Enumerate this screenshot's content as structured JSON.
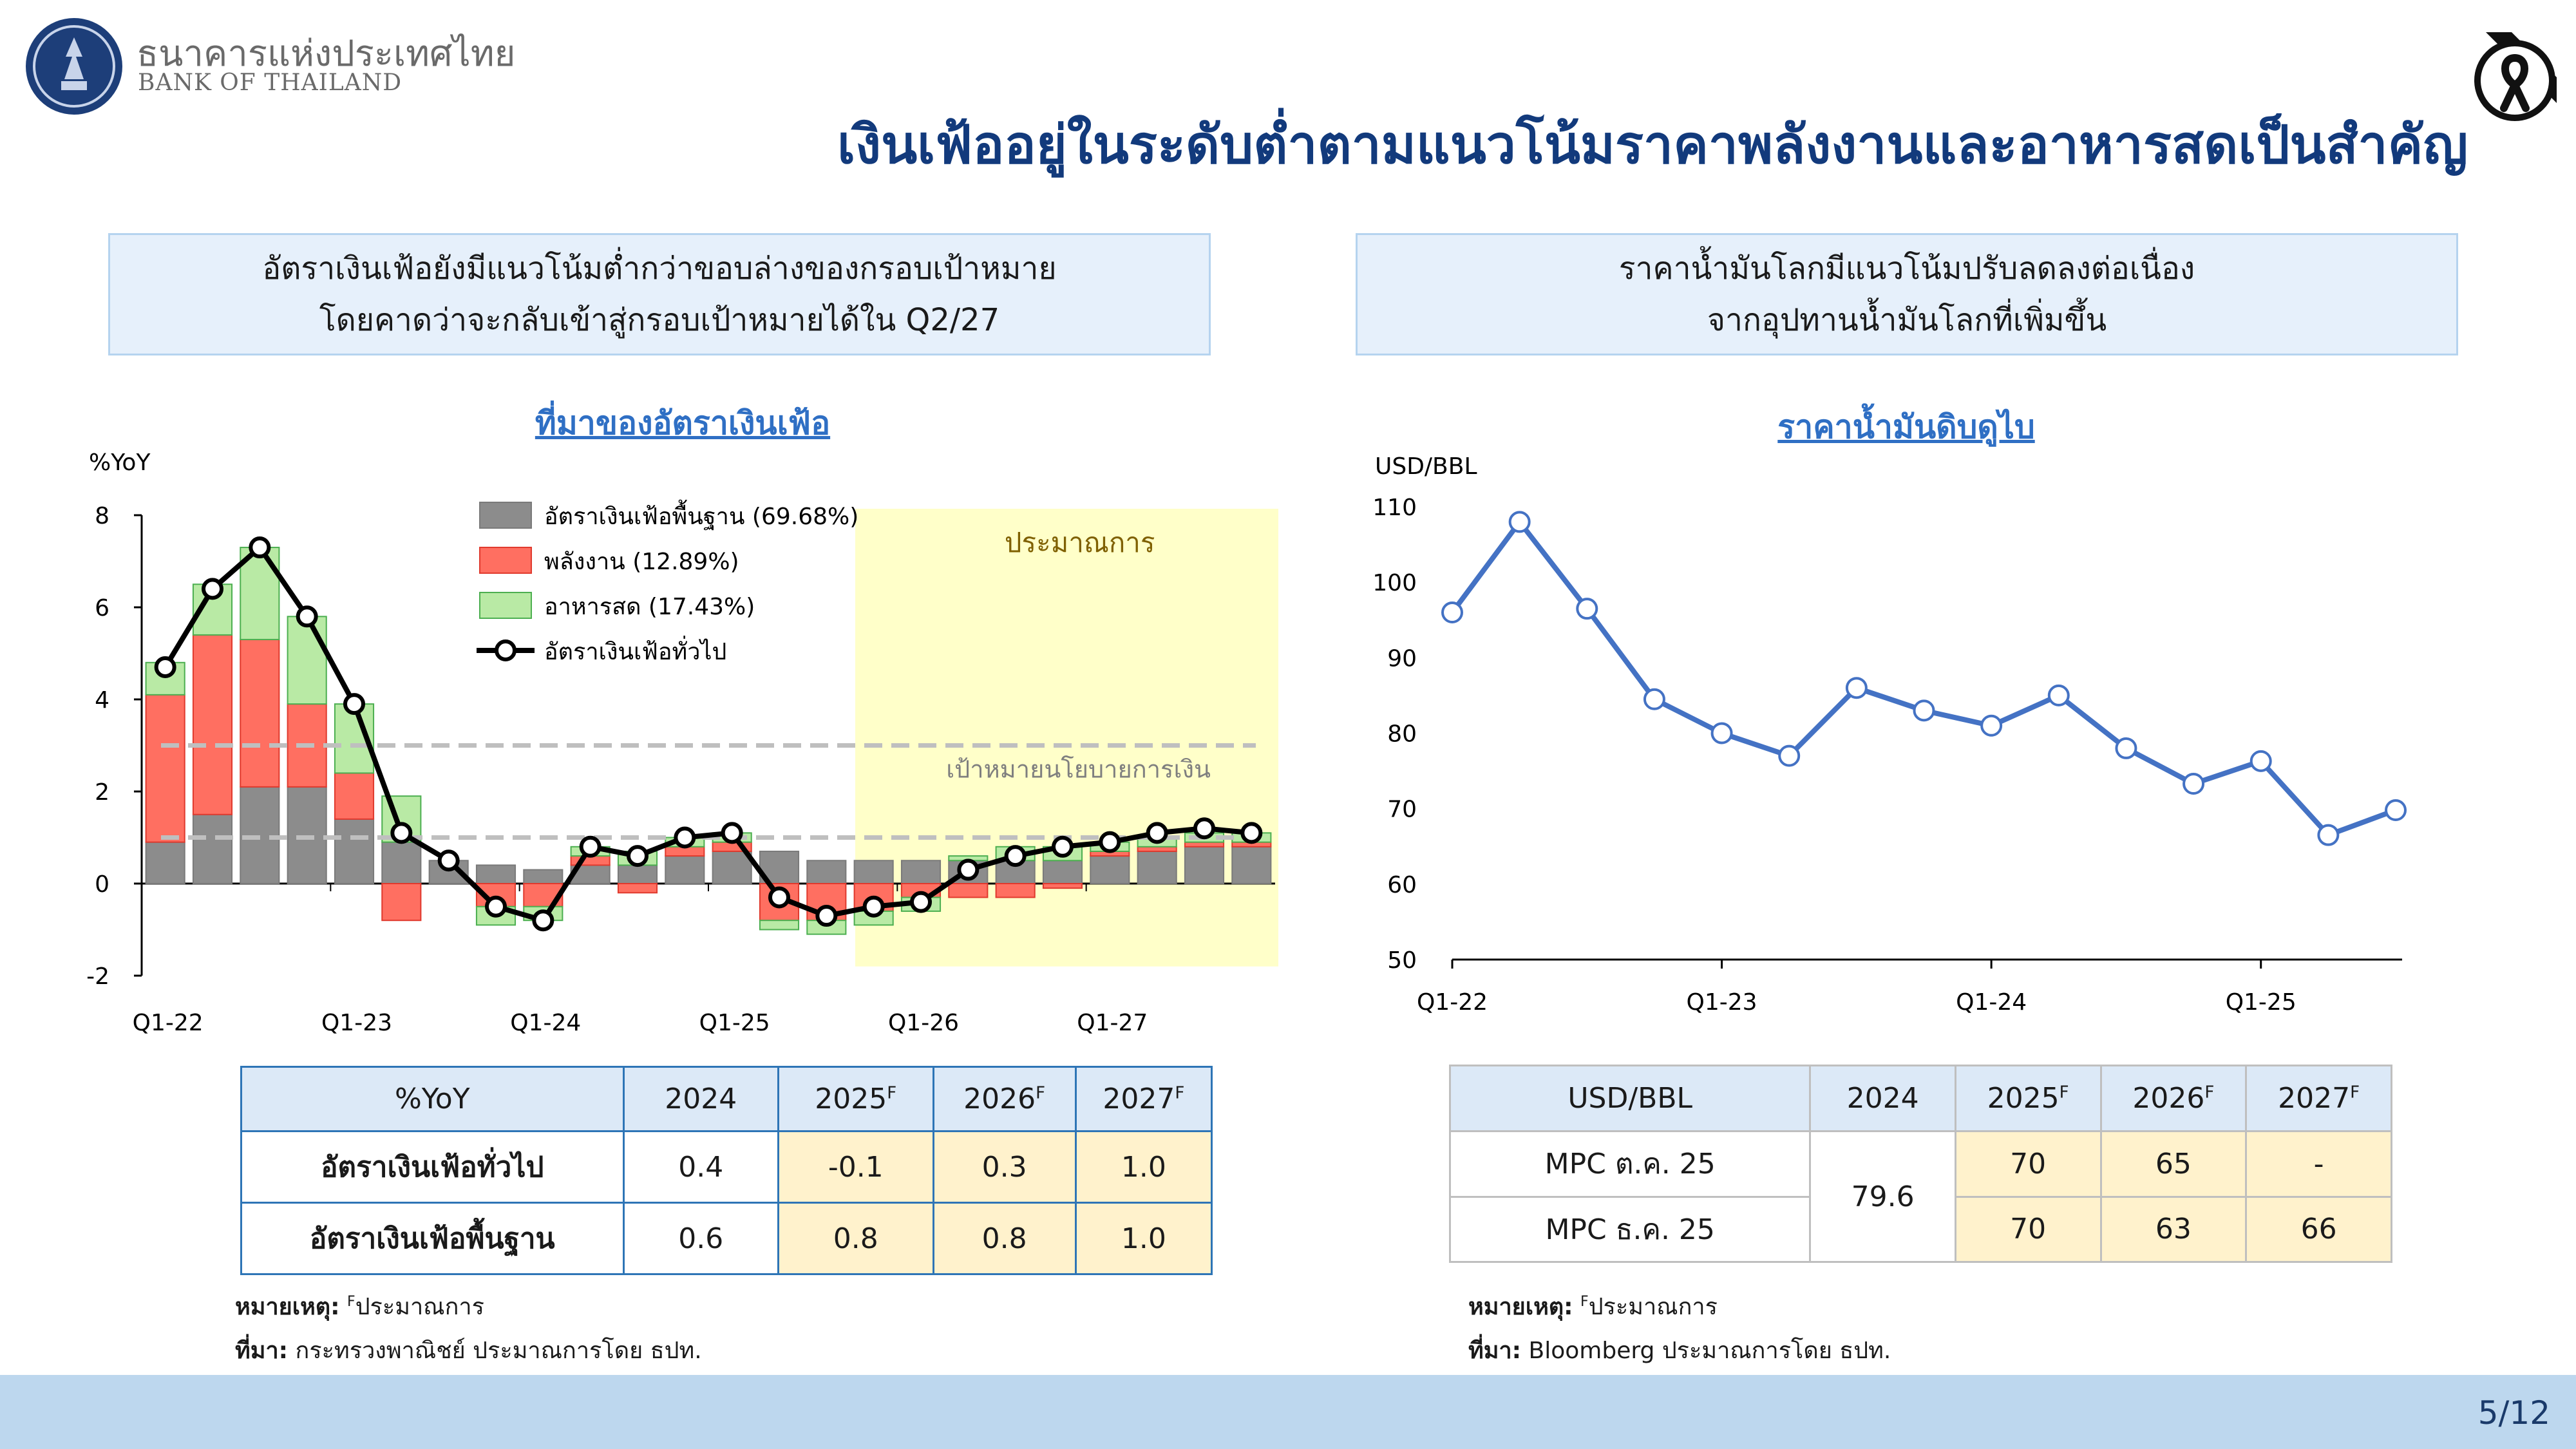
{
  "bank": {
    "name_th": "ธนาคารแห่งประเทศไทย",
    "name_en": "BANK OF THAILAND"
  },
  "page_title": "เงินเฟ้ออยู่ในระดับต่ำตามแนวโน้มราคาพลังงานและอาหารสดเป็นสำคัญ",
  "left_box": {
    "line1": "อัตราเงินเฟ้อยังมีแนวโน้มต่ำกว่าขอบล่างของกรอบเป้าหมาย",
    "line2": "โดยคาดว่าจะกลับเข้าสู่กรอบเป้าหมายได้ใน Q2/27"
  },
  "right_box": {
    "line1": "ราคาน้ำมันโลกมีแนวโน้มปรับลดลงต่อเนื่อง",
    "line2": "จากอุปทานน้ำมันโลกที่เพิ่มขึ้น"
  },
  "colors": {
    "core": "#8c8c8c",
    "energy": "#ff6f61",
    "food": "#b9eaa5",
    "headline": "#000000",
    "oil": "#4472c4",
    "forecast_bg": "#ffffc9",
    "target": "#bfbfbf"
  },
  "chart_data": [
    {
      "type": "bar",
      "title": "ที่มาของอัตราเงินเฟ้อ",
      "ylabel": "%YoY",
      "ylim": [
        -2,
        8
      ],
      "yticks": [
        -2,
        0,
        2,
        4,
        6,
        8
      ],
      "x": [
        "Q1-22",
        "Q2-22",
        "Q3-22",
        "Q4-22",
        "Q1-23",
        "Q2-23",
        "Q3-23",
        "Q4-23",
        "Q1-24",
        "Q2-24",
        "Q3-24",
        "Q4-24",
        "Q1-25",
        "Q2-25",
        "Q3-25",
        "Q4-25",
        "Q1-26",
        "Q2-26",
        "Q3-26",
        "Q4-26",
        "Q1-27",
        "Q2-27",
        "Q3-27",
        "Q4-27"
      ],
      "x_tick_labels": [
        "Q1-22",
        "Q1-23",
        "Q1-24",
        "Q1-25",
        "Q1-26",
        "Q1-27"
      ],
      "series": [
        {
          "name": "อัตราเงินเฟ้อพื้นฐาน (69.68%)",
          "kind": "bar",
          "values": [
            0.9,
            1.5,
            2.1,
            2.1,
            1.4,
            0.9,
            0.5,
            0.4,
            0.3,
            0.4,
            0.4,
            0.6,
            0.7,
            0.7,
            0.5,
            0.5,
            0.5,
            0.5,
            0.5,
            0.5,
            0.6,
            0.7,
            0.8,
            0.8
          ]
        },
        {
          "name": "พลังงาน (12.89%)",
          "kind": "bar",
          "values": [
            3.2,
            3.9,
            3.2,
            1.8,
            1.0,
            -0.8,
            0,
            -0.5,
            -0.5,
            0.2,
            -0.2,
            0.2,
            0.2,
            -0.8,
            -0.8,
            -0.6,
            -0.3,
            -0.3,
            -0.3,
            -0.1,
            0.1,
            0.1,
            0.1,
            0.1
          ]
        },
        {
          "name": "อาหารสด (17.43%)",
          "kind": "bar",
          "values": [
            0.7,
            1.1,
            2.0,
            1.9,
            1.5,
            1.0,
            0,
            -0.4,
            -0.3,
            0.2,
            0.3,
            0.2,
            0.2,
            -0.2,
            -0.3,
            -0.3,
            -0.3,
            0.1,
            0.3,
            0.3,
            0.2,
            0.2,
            0.2,
            0.2
          ]
        },
        {
          "name": "อัตราเงินเฟ้อทั่วไป",
          "kind": "line",
          "values": [
            4.7,
            6.4,
            7.3,
            5.8,
            3.9,
            1.1,
            0.5,
            -0.5,
            -0.8,
            0.8,
            0.6,
            1.0,
            1.1,
            -0.3,
            -0.7,
            -0.5,
            -0.4,
            0.3,
            0.6,
            0.8,
            0.9,
            1.1,
            1.2,
            1.1
          ]
        }
      ],
      "target_band": [
        1,
        3
      ],
      "target_label": "เป้าหมายนโยบายการเงิน",
      "forecast_label": "ประมาณการ",
      "forecast_start": "Q4-25",
      "legend": "top-left"
    },
    {
      "type": "line",
      "title": "ราคาน้ำมันดิบดูไบ",
      "ylabel": "USD/BBL",
      "ylim": [
        50,
        110
      ],
      "yticks": [
        50,
        60,
        70,
        80,
        90,
        100,
        110
      ],
      "x": [
        "Q1-22",
        "Q2-22",
        "Q3-22",
        "Q4-22",
        "Q1-23",
        "Q2-23",
        "Q3-23",
        "Q4-23",
        "Q1-24",
        "Q2-24",
        "Q3-24",
        "Q4-24",
        "Q1-25",
        "Q2-25",
        "Q3-25"
      ],
      "x_tick_labels": [
        "Q1-22",
        "Q1-23",
        "Q1-24",
        "Q1-25"
      ],
      "series": [
        {
          "values": [
            96,
            108,
            96.5,
            84.5,
            80,
            77,
            86,
            83,
            81,
            85,
            78,
            73.3,
            76.3,
            66.5,
            69.8
          ]
        }
      ]
    }
  ],
  "table_left": {
    "header": [
      "%YoY",
      "2024",
      "2025",
      "2026",
      "2027"
    ],
    "sup": "F",
    "rows": [
      {
        "label": "อัตราเงินเฟ้อทั่วไป",
        "values": [
          "0.4",
          "-0.1",
          "0.3",
          "1.0"
        ]
      },
      {
        "label": "อัตราเงินเฟ้อพื้นฐาน",
        "values": [
          "0.6",
          "0.8",
          "0.8",
          "1.0"
        ]
      }
    ]
  },
  "table_right": {
    "header": [
      "USD/BBL",
      "2024",
      "2025",
      "2026",
      "2027"
    ],
    "sup": "F",
    "value_2024": "79.6",
    "rows": [
      {
        "label": "MPC ต.ค. 25",
        "values": [
          "70",
          "65",
          "-"
        ]
      },
      {
        "label": "MPC ธ.ค. 25",
        "values": [
          "70",
          "63",
          "66"
        ]
      }
    ]
  },
  "notes_left": {
    "note_label": "หมายเหตุ:",
    "note_sup": "F",
    "note_text": "ประมาณการ",
    "source_label": "ที่มา:",
    "source_text": "กระทรวงพาณิชย์ ประมาณการโดย ธปท."
  },
  "notes_right": {
    "note_label": "หมายเหตุ:",
    "note_sup": "F",
    "note_text": "ประมาณการ",
    "source_label": "ที่มา:",
    "source_text": "Bloomberg ประมาณการโดย ธปท."
  },
  "page_number": "5/12"
}
